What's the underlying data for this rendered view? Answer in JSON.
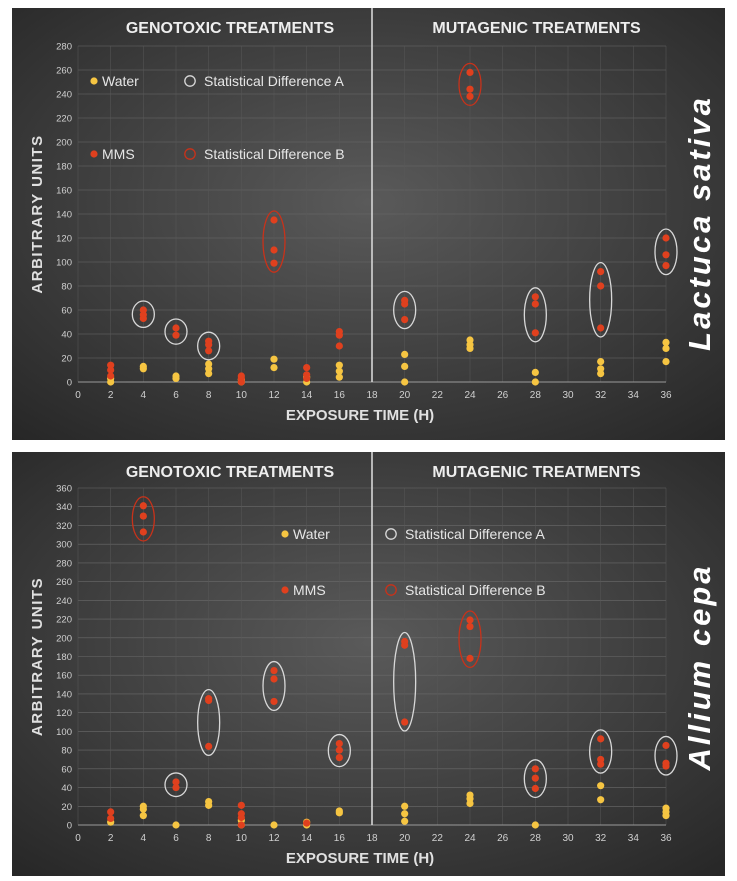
{
  "chart_data": [
    {
      "type": "scatter",
      "species": "Lactuca sativa",
      "section_left": "GENOTOXIC TREATMENTS",
      "section_right": "MUTAGENIC TREATMENTS",
      "xlabel": "EXPOSURE TIME (H)",
      "ylabel": "ARBITRARY UNITS",
      "xlim": [
        0,
        36
      ],
      "ylim": [
        0,
        280
      ],
      "xticks": [
        "0",
        "2",
        "4",
        "6",
        "8",
        "10",
        "12",
        "14",
        "16",
        "18",
        "20",
        "22",
        "24",
        "26",
        "28",
        "30",
        "32",
        "34",
        "36"
      ],
      "yticks": [
        "0",
        "20",
        "40",
        "60",
        "80",
        "100",
        "120",
        "140",
        "160",
        "180",
        "200",
        "220",
        "240",
        "260",
        "280"
      ],
      "divider_x": 18,
      "legend": {
        "water": "Water",
        "mms": "MMS",
        "diff_a": "Statistical Difference A",
        "diff_b": "Statistical Difference B"
      },
      "colors": {
        "water": "#f6c542",
        "mms": "#e0401e",
        "diff_a": "#d8d8d8",
        "diff_b": "#c8321a"
      },
      "series": [
        {
          "name": "Water",
          "points": [
            [
              2,
              0
            ],
            [
              2,
              3
            ],
            [
              4,
              11
            ],
            [
              4,
              13
            ],
            [
              6,
              3
            ],
            [
              6,
              5
            ],
            [
              8,
              7
            ],
            [
              8,
              11
            ],
            [
              8,
              15
            ],
            [
              10,
              0
            ],
            [
              10,
              2
            ],
            [
              12,
              12
            ],
            [
              12,
              19
            ],
            [
              14,
              0
            ],
            [
              14,
              4
            ],
            [
              16,
              4
            ],
            [
              16,
              9
            ],
            [
              16,
              14
            ],
            [
              20,
              0
            ],
            [
              20,
              13
            ],
            [
              20,
              23
            ],
            [
              24,
              28
            ],
            [
              24,
              31
            ],
            [
              24,
              35
            ],
            [
              28,
              0
            ],
            [
              28,
              8
            ],
            [
              32,
              7
            ],
            [
              32,
              11
            ],
            [
              32,
              17
            ],
            [
              36,
              17
            ],
            [
              36,
              28
            ],
            [
              36,
              33
            ]
          ]
        },
        {
          "name": "MMS",
          "points": [
            [
              2,
              5
            ],
            [
              2,
              10
            ],
            [
              2,
              14
            ],
            [
              4,
              53
            ],
            [
              4,
              56
            ],
            [
              4,
              60
            ],
            [
              6,
              39
            ],
            [
              6,
              45
            ],
            [
              8,
              26
            ],
            [
              8,
              31
            ],
            [
              8,
              34
            ],
            [
              10,
              0
            ],
            [
              10,
              3
            ],
            [
              10,
              5
            ],
            [
              12,
              99
            ],
            [
              12,
              110
            ],
            [
              12,
              135
            ],
            [
              14,
              3
            ],
            [
              14,
              6
            ],
            [
              14,
              12
            ],
            [
              16,
              30
            ],
            [
              16,
              39
            ],
            [
              16,
              42
            ],
            [
              20,
              52
            ],
            [
              20,
              65
            ],
            [
              20,
              68
            ],
            [
              24,
              238
            ],
            [
              24,
              244
            ],
            [
              24,
              258
            ],
            [
              28,
              41
            ],
            [
              28,
              65
            ],
            [
              28,
              71
            ],
            [
              32,
              45
            ],
            [
              32,
              80
            ],
            [
              32,
              92
            ],
            [
              36,
              97
            ],
            [
              36,
              106
            ],
            [
              36,
              120
            ]
          ]
        }
      ],
      "annotations": [
        {
          "x": 4,
          "ymin": 53,
          "ymax": 60,
          "type": "A"
        },
        {
          "x": 6,
          "ymin": 39,
          "ymax": 45,
          "type": "A"
        },
        {
          "x": 8,
          "ymin": 26,
          "ymax": 34,
          "type": "A"
        },
        {
          "x": 12,
          "ymin": 99,
          "ymax": 135,
          "type": "B"
        },
        {
          "x": 20,
          "ymin": 52,
          "ymax": 68,
          "type": "A"
        },
        {
          "x": 24,
          "ymin": 238,
          "ymax": 258,
          "type": "B"
        },
        {
          "x": 28,
          "ymin": 41,
          "ymax": 71,
          "type": "A"
        },
        {
          "x": 32,
          "ymin": 45,
          "ymax": 92,
          "type": "A"
        },
        {
          "x": 36,
          "ymin": 97,
          "ymax": 120,
          "type": "A"
        }
      ]
    },
    {
      "type": "scatter",
      "species": "Allium cepa",
      "section_left": "GENOTOXIC TREATMENTS",
      "section_right": "MUTAGENIC TREATMENTS",
      "xlabel": "EXPOSURE TIME (H)",
      "ylabel": "ARBITRARY UNITS",
      "xlim": [
        0,
        36
      ],
      "ylim": [
        0,
        360
      ],
      "xticks": [
        "0",
        "2",
        "4",
        "6",
        "8",
        "10",
        "12",
        "14",
        "16",
        "18",
        "20",
        "22",
        "24",
        "26",
        "28",
        "30",
        "32",
        "34",
        "36"
      ],
      "yticks": [
        "0",
        "20",
        "40",
        "60",
        "80",
        "100",
        "120",
        "140",
        "160",
        "180",
        "200",
        "220",
        "240",
        "260",
        "280",
        "300",
        "320",
        "340",
        "360"
      ],
      "divider_x": 18,
      "legend": {
        "water": "Water",
        "mms": "MMS",
        "diff_a": "Statistical Difference A",
        "diff_b": "Statistical Difference B"
      },
      "colors": {
        "water": "#f6c542",
        "mms": "#e0401e",
        "diff_a": "#d8d8d8",
        "diff_b": "#c8321a"
      },
      "series": [
        {
          "name": "Water",
          "points": [
            [
              2,
              3
            ],
            [
              4,
              10
            ],
            [
              4,
              17
            ],
            [
              4,
              20
            ],
            [
              6,
              0
            ],
            [
              8,
              21
            ],
            [
              8,
              25
            ],
            [
              10,
              0
            ],
            [
              10,
              5
            ],
            [
              12,
              0
            ],
            [
              14,
              0
            ],
            [
              14,
              3
            ],
            [
              16,
              13
            ],
            [
              16,
              15
            ],
            [
              20,
              4
            ],
            [
              20,
              12
            ],
            [
              20,
              20
            ],
            [
              24,
              23
            ],
            [
              24,
              28
            ],
            [
              24,
              32
            ],
            [
              28,
              0
            ],
            [
              32,
              27
            ],
            [
              32,
              42
            ],
            [
              36,
              10
            ],
            [
              36,
              14
            ],
            [
              36,
              18
            ]
          ]
        },
        {
          "name": "MMS",
          "points": [
            [
              2,
              7
            ],
            [
              2,
              14
            ],
            [
              4,
              313
            ],
            [
              4,
              330
            ],
            [
              4,
              341
            ],
            [
              6,
              40
            ],
            [
              6,
              46
            ],
            [
              8,
              84
            ],
            [
              8,
              133
            ],
            [
              8,
              135
            ],
            [
              10,
              0
            ],
            [
              10,
              8
            ],
            [
              10,
              12
            ],
            [
              10,
              21
            ],
            [
              12,
              132
            ],
            [
              12,
              156
            ],
            [
              12,
              165
            ],
            [
              14,
              2
            ],
            [
              16,
              72
            ],
            [
              16,
              80
            ],
            [
              16,
              87
            ],
            [
              20,
              110
            ],
            [
              20,
              192
            ],
            [
              20,
              196
            ],
            [
              24,
              178
            ],
            [
              24,
              212
            ],
            [
              24,
              219
            ],
            [
              28,
              39
            ],
            [
              28,
              50
            ],
            [
              28,
              60
            ],
            [
              32,
              65
            ],
            [
              32,
              70
            ],
            [
              32,
              92
            ],
            [
              36,
              63
            ],
            [
              36,
              66
            ],
            [
              36,
              85
            ]
          ]
        }
      ],
      "annotations": [
        {
          "x": 4,
          "ymin": 313,
          "ymax": 341,
          "type": "B"
        },
        {
          "x": 6,
          "ymin": 40,
          "ymax": 46,
          "type": "A"
        },
        {
          "x": 8,
          "ymin": 84,
          "ymax": 135,
          "type": "A"
        },
        {
          "x": 12,
          "ymin": 132,
          "ymax": 165,
          "type": "A"
        },
        {
          "x": 16,
          "ymin": 72,
          "ymax": 87,
          "type": "A"
        },
        {
          "x": 20,
          "ymin": 110,
          "ymax": 196,
          "type": "A"
        },
        {
          "x": 24,
          "ymin": 178,
          "ymax": 219,
          "type": "B"
        },
        {
          "x": 28,
          "ymin": 39,
          "ymax": 60,
          "type": "A"
        },
        {
          "x": 32,
          "ymin": 65,
          "ymax": 92,
          "type": "A"
        },
        {
          "x": 36,
          "ymin": 63,
          "ymax": 85,
          "type": "A"
        }
      ]
    }
  ]
}
